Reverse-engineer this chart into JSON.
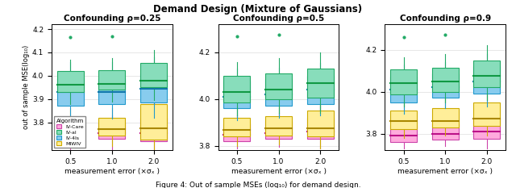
{
  "title": "Demand Design (Mixture of Gaussians)",
  "subplots": [
    {
      "title": "Confounding ρ=0.25"
    },
    {
      "title": "Confounding ρ=0.5"
    },
    {
      "title": "Confounding ρ=0.9"
    }
  ],
  "xlabel": "measurement error (×σₓ )",
  "ylabel": "out of sample MSE(log₁₀)",
  "xtick_labels": [
    "0.5",
    "1.0",
    "2.0"
  ],
  "algorithms": [
    "IV-Care",
    "IV-al",
    "IV-4ls",
    "MIWIV"
  ],
  "colors": {
    "IV-Care": "#FFAADD",
    "IV-al": "#88DDBB",
    "IV-4ls": "#88CCEE",
    "MIWIV": "#FFEE99"
  },
  "edge_colors": {
    "IV-Care": "#CC44AA",
    "IV-al": "#22AA66",
    "IV-4ls": "#2299CC",
    "MIWIV": "#CCAA00"
  },
  "median_colors": {
    "IV-Care": "#BB1188",
    "IV-al": "#119944",
    "IV-4ls": "#1177AA",
    "MIWIV": "#AA8800"
  },
  "legend_labels": [
    "IV-Care",
    "IV-al",
    "IV-4ls",
    "MIWIV"
  ],
  "panel1": {
    "ylim": [
      3.68,
      4.22
    ],
    "yticks": [
      3.8,
      3.9,
      4.0,
      4.1,
      4.2
    ],
    "data": {
      "IV-Care": {
        "0.5": {
          "q1": 3.725,
          "median": 3.748,
          "q3": 3.785,
          "whislo": 3.685,
          "whishi": 3.82
        },
        "1.0": {
          "q1": 3.73,
          "median": 3.755,
          "q3": 3.8,
          "whislo": 3.685,
          "whishi": 3.83
        },
        "2.0": {
          "q1": 3.72,
          "median": 3.755,
          "q3": 3.82,
          "whislo": 3.63,
          "whishi": 3.9
        }
      },
      "IV-al": {
        "0.5": {
          "q1": 3.93,
          "median": 3.96,
          "q3": 4.02,
          "whislo": 3.88,
          "whishi": 4.07,
          "fliers_high": [
            4.165
          ]
        },
        "1.0": {
          "q1": 3.94,
          "median": 3.965,
          "q3": 4.025,
          "whislo": 3.89,
          "whishi": 4.075,
          "fliers_high": [
            4.17
          ]
        },
        "2.0": {
          "q1": 3.95,
          "median": 3.98,
          "q3": 4.055,
          "whislo": 3.895,
          "whishi": 4.11
        }
      },
      "IV-4ls": {
        "0.5": {
          "q1": 3.87,
          "median": 3.93,
          "q3": 3.99,
          "whislo": 3.8,
          "whishi": 4.06
        },
        "1.0": {
          "q1": 3.88,
          "median": 3.93,
          "q3": 3.99,
          "whislo": 3.815,
          "whishi": 4.06
        },
        "2.0": {
          "q1": 3.885,
          "median": 3.945,
          "q3": 4.01,
          "whislo": 3.82,
          "whishi": 4.08
        }
      },
      "MIWIV": {
        "0.5": {
          "q1": 3.745,
          "median": 3.77,
          "q3": 3.82,
          "whislo": 3.7,
          "whishi": 3.86
        },
        "1.0": {
          "q1": 3.745,
          "median": 3.77,
          "q3": 3.82,
          "whislo": 3.7,
          "whishi": 3.86
        },
        "2.0": {
          "q1": 3.725,
          "median": 3.775,
          "q3": 3.88,
          "whislo": 3.68,
          "whishi": 3.96
        }
      }
    }
  },
  "panel2": {
    "ylim": [
      3.78,
      4.32
    ],
    "yticks": [
      3.8,
      4.0,
      4.2
    ],
    "data": {
      "IV-Care": {
        "0.5": {
          "q1": 3.82,
          "median": 3.848,
          "q3": 3.895,
          "whislo": 3.788,
          "whishi": 3.93
        },
        "1.0": {
          "q1": 3.83,
          "median": 3.855,
          "q3": 3.905,
          "whislo": 3.795,
          "whishi": 3.94
        },
        "2.0": {
          "q1": 3.83,
          "median": 3.86,
          "q3": 3.92,
          "whislo": 3.788,
          "whishi": 3.97
        }
      },
      "IV-al": {
        "0.5": {
          "q1": 3.985,
          "median": 4.03,
          "q3": 4.1,
          "whislo": 3.93,
          "whishi": 4.16,
          "fliers_high": [
            4.27
          ]
        },
        "1.0": {
          "q1": 4.0,
          "median": 4.04,
          "q3": 4.11,
          "whislo": 3.94,
          "whishi": 4.175,
          "fliers_high": [
            4.275
          ]
        },
        "2.0": {
          "q1": 4.005,
          "median": 4.07,
          "q3": 4.13,
          "whislo": 3.94,
          "whishi": 4.2
        }
      },
      "IV-4ls": {
        "0.5": {
          "q1": 3.96,
          "median": 4.01,
          "q3": 4.08,
          "whislo": 3.91,
          "whishi": 4.13
        },
        "1.0": {
          "q1": 3.97,
          "median": 4.02,
          "q3": 4.085,
          "whislo": 3.92,
          "whishi": 4.135
        },
        "2.0": {
          "q1": 3.98,
          "median": 4.04,
          "q3": 4.1,
          "whislo": 3.93,
          "whishi": 4.155
        }
      },
      "MIWIV": {
        "0.5": {
          "q1": 3.84,
          "median": 3.868,
          "q3": 3.92,
          "whislo": 3.8,
          "whishi": 3.96
        },
        "1.0": {
          "q1": 3.845,
          "median": 3.875,
          "q3": 3.925,
          "whislo": 3.805,
          "whishi": 3.965
        },
        "2.0": {
          "q1": 3.84,
          "median": 3.875,
          "q3": 3.95,
          "whislo": 3.79,
          "whishi": 4.01
        }
      }
    }
  },
  "panel3": {
    "ylim": [
      3.72,
      4.32
    ],
    "yticks": [
      3.8,
      4.0,
      4.2
    ],
    "data": {
      "IV-Care": {
        "0.5": {
          "q1": 3.76,
          "median": 3.79,
          "q3": 3.84,
          "whislo": 3.73,
          "whishi": 3.88
        },
        "1.0": {
          "q1": 3.77,
          "median": 3.8,
          "q3": 3.85,
          "whislo": 3.74,
          "whishi": 3.89
        },
        "2.0": {
          "q1": 3.775,
          "median": 3.81,
          "q3": 3.87,
          "whislo": 3.73,
          "whishi": 3.92
        }
      },
      "IV-al": {
        "0.5": {
          "q1": 3.985,
          "median": 4.04,
          "q3": 4.105,
          "whislo": 3.93,
          "whishi": 4.165,
          "fliers_high": [
            4.26
          ]
        },
        "1.0": {
          "q1": 4.0,
          "median": 4.05,
          "q3": 4.115,
          "whislo": 3.95,
          "whishi": 4.18,
          "fliers_high": [
            4.27
          ]
        },
        "2.0": {
          "q1": 4.02,
          "median": 4.075,
          "q3": 4.15,
          "whislo": 3.96,
          "whishi": 4.22
        }
      },
      "IV-4ls": {
        "0.5": {
          "q1": 3.95,
          "median": 4.01,
          "q3": 4.07,
          "whislo": 3.895,
          "whishi": 4.13
        },
        "1.0": {
          "q1": 3.97,
          "median": 4.02,
          "q3": 4.085,
          "whislo": 3.92,
          "whishi": 4.14
        },
        "2.0": {
          "q1": 3.99,
          "median": 4.05,
          "q3": 4.12,
          "whislo": 3.93,
          "whishi": 4.18
        }
      },
      "MIWIV": {
        "0.5": {
          "q1": 3.82,
          "median": 3.858,
          "q3": 3.91,
          "whislo": 3.78,
          "whishi": 3.96
        },
        "1.0": {
          "q1": 3.83,
          "median": 3.86,
          "q3": 3.92,
          "whislo": 3.79,
          "whishi": 3.97
        },
        "2.0": {
          "q1": 3.835,
          "median": 3.87,
          "q3": 3.95,
          "whislo": 3.79,
          "whishi": 4.005
        }
      }
    }
  }
}
